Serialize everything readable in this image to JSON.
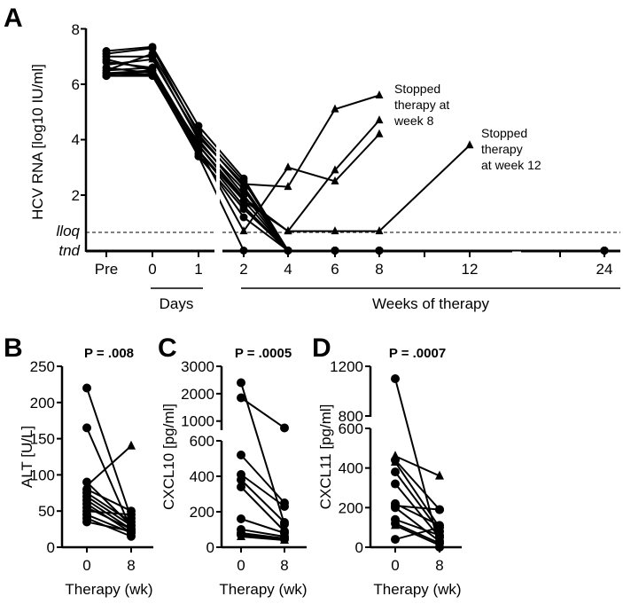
{
  "chart_data": [
    {
      "panel": "A",
      "type": "line",
      "ylabel": "HCV RNA [log10 IU/ml]",
      "y_ticks": [
        "8",
        "6",
        "4",
        "2"
      ],
      "y_special_ticks": {
        "lloq": "lloq",
        "tnd": "tnd"
      },
      "ylim": [
        0,
        8
      ],
      "lloq_value": 0.7,
      "tnd_value": 0,
      "categories": [
        "Pre",
        "0",
        "1",
        "2",
        "4",
        "6",
        "8",
        "12",
        "24"
      ],
      "group_labels": {
        "days": "Days",
        "weeks": "Weeks of therapy"
      },
      "annotations": [
        {
          "text_lines": [
            "Stopped",
            "therapy at",
            "week 8"
          ]
        },
        {
          "text_lines": [
            "Stopped",
            "therapy",
            "at week 12"
          ]
        }
      ],
      "series": [
        {
          "marker": "circle",
          "values": [
            7.2,
            7.35,
            4.5,
            2.6,
            0,
            0,
            0,
            null,
            0
          ]
        },
        {
          "marker": "circle",
          "values": [
            7.1,
            7.3,
            4.2,
            2.3,
            0,
            0,
            0,
            null,
            0
          ]
        },
        {
          "marker": "circle",
          "values": [
            7.0,
            7.0,
            4.0,
            2.0,
            0,
            0,
            0,
            null,
            0
          ]
        },
        {
          "marker": "circle",
          "values": [
            6.9,
            6.5,
            3.8,
            1.8,
            0,
            0,
            0,
            null,
            0
          ]
        },
        {
          "marker": "circle",
          "values": [
            6.8,
            6.6,
            3.6,
            1.6,
            0,
            0,
            0,
            null,
            0
          ]
        },
        {
          "marker": "circle",
          "values": [
            6.6,
            6.4,
            3.4,
            1.5,
            0,
            0,
            0,
            null,
            0
          ]
        },
        {
          "marker": "circle",
          "values": [
            6.5,
            7.1,
            4.3,
            2.5,
            0,
            0,
            0,
            null,
            0
          ]
        },
        {
          "marker": "circle",
          "values": [
            6.4,
            6.35,
            3.9,
            2.2,
            0,
            0,
            0,
            null,
            0
          ]
        },
        {
          "marker": "circle",
          "values": [
            6.3,
            6.3,
            3.5,
            1.2,
            0,
            0,
            0,
            null,
            0
          ]
        },
        {
          "marker": "circle",
          "values": [
            6.3,
            6.35,
            3.4,
            0,
            0,
            0,
            0,
            null,
            0
          ]
        },
        {
          "marker": "triangle",
          "values": [
            6.4,
            6.5,
            3.7,
            0.7,
            3.0,
            2.5,
            4.2,
            null,
            null
          ]
        },
        {
          "marker": "triangle",
          "values": [
            6.7,
            6.9,
            4.1,
            2.4,
            2.3,
            5.1,
            5.6,
            null,
            null
          ]
        },
        {
          "marker": "triangle",
          "values": [
            6.35,
            6.45,
            3.6,
            1.8,
            0.7,
            2.9,
            4.7,
            null,
            null
          ]
        },
        {
          "marker": "triangle",
          "values": [
            6.5,
            6.6,
            3.8,
            1.9,
            0.7,
            0.7,
            0.7,
            3.8,
            null
          ]
        }
      ]
    },
    {
      "panel": "B",
      "type": "line",
      "title": "P = .008",
      "ylabel": "ALT [U/L]",
      "xlabel": "Therapy (wk)",
      "categories": [
        "0",
        "8"
      ],
      "y_ticks": [
        "0",
        "50",
        "100",
        "150",
        "200",
        "250"
      ],
      "ylim": [
        0,
        250
      ],
      "pairs": [
        {
          "marker": "circle",
          "values": [
            220,
            40
          ]
        },
        {
          "marker": "circle",
          "values": [
            165,
            25
          ]
        },
        {
          "marker": "circle",
          "values": [
            90,
            30
          ]
        },
        {
          "marker": "triangle",
          "values": [
            85,
            140
          ]
        },
        {
          "marker": "circle",
          "values": [
            80,
            50
          ]
        },
        {
          "marker": "circle",
          "values": [
            75,
            35
          ]
        },
        {
          "marker": "circle",
          "values": [
            70,
            30
          ]
        },
        {
          "marker": "circle",
          "values": [
            65,
            25
          ]
        },
        {
          "marker": "circle",
          "values": [
            60,
            20
          ]
        },
        {
          "marker": "circle",
          "values": [
            55,
            25
          ]
        },
        {
          "marker": "circle",
          "values": [
            50,
            45
          ]
        },
        {
          "marker": "circle",
          "values": [
            45,
            20
          ]
        },
        {
          "marker": "circle",
          "values": [
            40,
            15
          ]
        },
        {
          "marker": "circle",
          "values": [
            35,
            22
          ]
        }
      ]
    },
    {
      "panel": "C",
      "type": "line",
      "title": "P = .0005",
      "ylabel": "CXCL10 [pg/ml]",
      "xlabel": "Therapy (wk)",
      "categories": [
        "0",
        "8"
      ],
      "y_ticks": [
        "0",
        "200",
        "400",
        "600",
        "1000",
        "2000",
        "3000"
      ],
      "y_segments": [
        [
          0,
          600
        ],
        [
          700,
          3000
        ]
      ],
      "pairs": [
        {
          "marker": "circle",
          "values": [
            2400,
            130
          ]
        },
        {
          "marker": "circle",
          "values": [
            1850,
            750
          ]
        },
        {
          "marker": "circle",
          "values": [
            520,
            250
          ]
        },
        {
          "marker": "circle",
          "values": [
            410,
            230
          ]
        },
        {
          "marker": "circle",
          "values": [
            380,
            140
          ]
        },
        {
          "marker": "circle",
          "values": [
            340,
            90
          ]
        },
        {
          "marker": "circle",
          "values": [
            160,
            80
          ]
        },
        {
          "marker": "circle",
          "values": [
            100,
            60
          ]
        },
        {
          "marker": "circle",
          "values": [
            80,
            50
          ]
        },
        {
          "marker": "circle",
          "values": [
            70,
            45
          ]
        },
        {
          "marker": "triangle",
          "values": [
            60,
            40
          ]
        }
      ]
    },
    {
      "panel": "D",
      "type": "line",
      "title": "P = .0007",
      "ylabel": "CXCL11 [pg/ml]",
      "xlabel": "Therapy (wk)",
      "categories": [
        "0",
        "8"
      ],
      "y_ticks": [
        "0",
        "200",
        "400",
        "600",
        "800",
        "1200"
      ],
      "y_segments": [
        [
          0,
          600
        ],
        [
          800,
          1200
        ]
      ],
      "pairs": [
        {
          "marker": "circle",
          "values": [
            1100,
            0
          ]
        },
        {
          "marker": "triangle",
          "values": [
            460,
            360
          ]
        },
        {
          "marker": "circle",
          "values": [
            440,
            190
          ]
        },
        {
          "marker": "triangle",
          "values": [
            430,
            100
          ]
        },
        {
          "marker": "circle",
          "values": [
            380,
            80
          ]
        },
        {
          "marker": "circle",
          "values": [
            320,
            50
          ]
        },
        {
          "marker": "circle",
          "values": [
            220,
            110
          ]
        },
        {
          "marker": "circle",
          "values": [
            210,
            190
          ]
        },
        {
          "marker": "circle",
          "values": [
            200,
            30
          ]
        },
        {
          "marker": "circle",
          "values": [
            140,
            60
          ]
        },
        {
          "marker": "circle",
          "values": [
            120,
            20
          ]
        },
        {
          "marker": "triangle",
          "values": [
            110,
            10
          ]
        },
        {
          "marker": "circle",
          "values": [
            40,
            100
          ]
        }
      ]
    }
  ]
}
